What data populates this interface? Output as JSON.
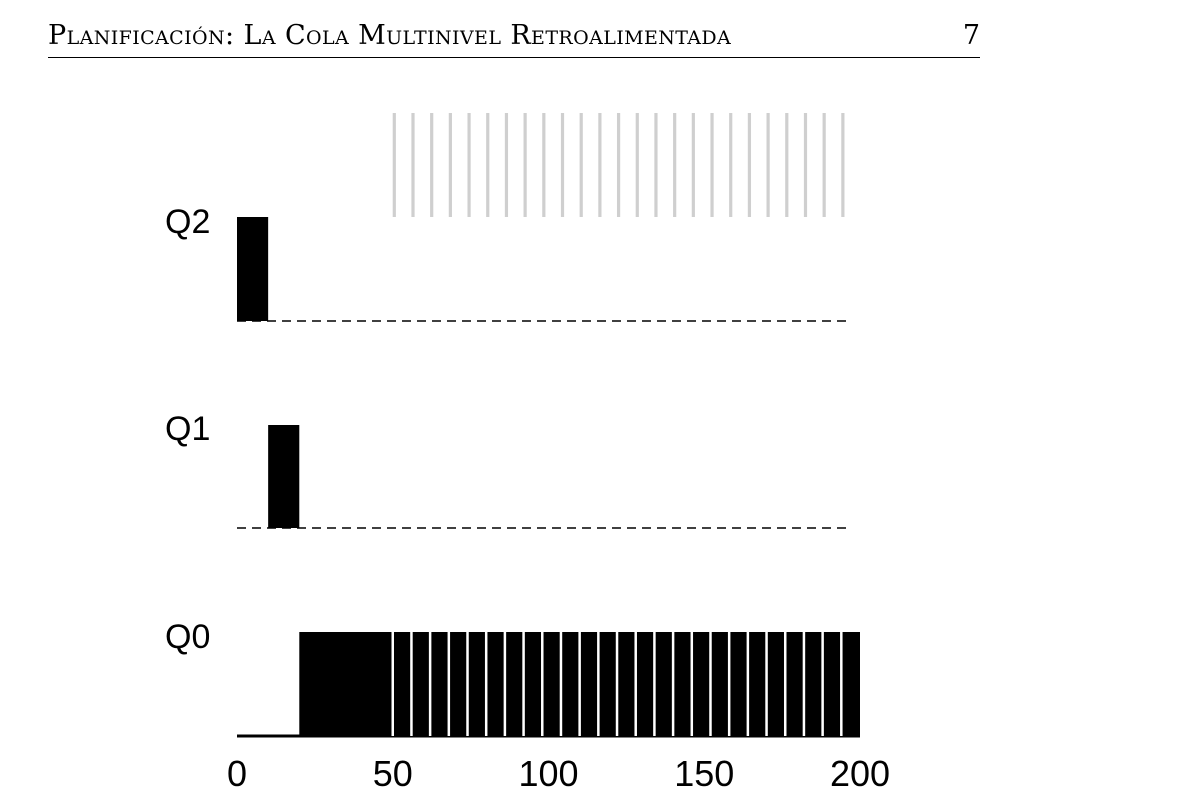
{
  "header": {
    "title": "Planificación: La Cola Multinivel Retroalimentada",
    "page_number": "7"
  },
  "chart_data": {
    "type": "bar",
    "queues": [
      "Q2",
      "Q1",
      "Q0"
    ],
    "xlim": [
      0,
      200
    ],
    "xticks": [
      "0",
      "50",
      "100",
      "150",
      "200"
    ],
    "colors": {
      "running": "#000000",
      "gray_job": "#cfcfcf",
      "dashed_baseline": "#000000"
    },
    "long_job": [
      {
        "queue": "Q2",
        "start": 0,
        "end": 10
      },
      {
        "queue": "Q1",
        "start": 10,
        "end": 20
      },
      {
        "queue": "Q0",
        "start": 20,
        "end": 200
      }
    ],
    "gray_job": {
      "queue": "Q2",
      "start": 50,
      "end": 200,
      "period": 6,
      "runtime": 1
    },
    "q0_slice_boundaries": [
      50,
      56,
      62,
      68,
      74,
      80,
      86,
      92,
      98,
      104,
      110,
      116,
      122,
      128,
      134,
      140,
      146,
      152,
      158,
      164,
      170,
      176,
      182,
      188,
      194,
      200
    ]
  }
}
